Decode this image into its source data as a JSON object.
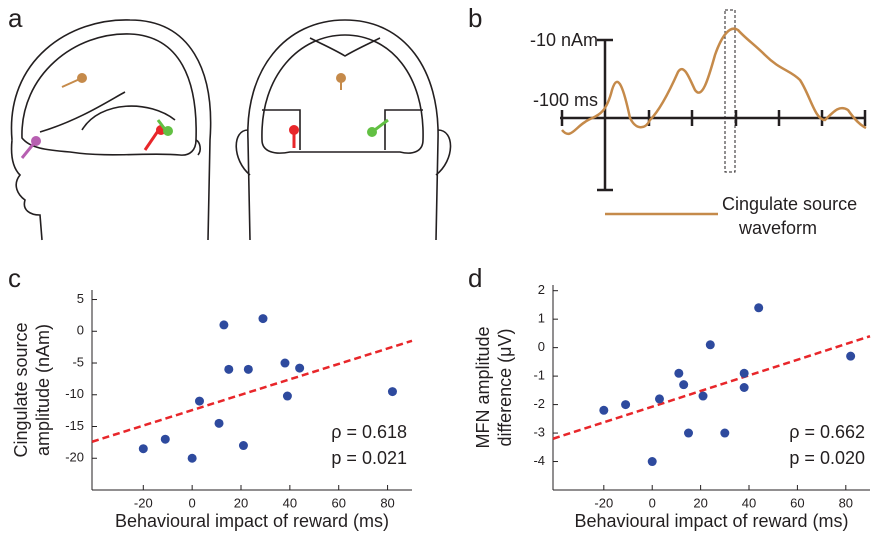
{
  "figure": {
    "panel_labels": [
      "a",
      "b",
      "c",
      "d"
    ],
    "waveform": {
      "amplitude_label": "-10 nAm",
      "time_label": "-100 ms",
      "legend": [
        "Cingulate source",
        "waveform"
      ]
    }
  },
  "chart_data": [
    {
      "type": "scatter",
      "y_label": [
        "Cingulate source",
        "amplitude (nAm)"
      ],
      "x_label": "Behavioural impact of reward (ms)",
      "x": [
        -20,
        -11,
        0,
        3,
        11,
        13,
        15,
        21,
        23,
        29,
        38,
        39,
        44,
        82
      ],
      "values": [
        -18.5,
        -17,
        -20,
        -11,
        -14.5,
        1,
        -6,
        -18,
        -6,
        2,
        -5,
        -10.2,
        -5.8,
        -9.5
      ],
      "color": "#2e4a9e",
      "xlim": [
        -41,
        90
      ],
      "xticks": [
        -20,
        0,
        20,
        40,
        60,
        80
      ],
      "ylim": [
        -25,
        6.5
      ],
      "yticks": [
        5,
        0,
        -5,
        -10,
        -15,
        -20
      ],
      "trendline": {
        "x": [
          -41,
          90
        ],
        "y": [
          -17.4,
          -1.5
        ],
        "color": "#e8262a"
      },
      "annotations": [
        "ρ = 0.618",
        "p = 0.021"
      ]
    },
    {
      "type": "scatter",
      "y_label": [
        "MFN amplitude",
        "difference (μV)"
      ],
      "x_label": "Behavioural impact of reward (ms)",
      "x": [
        -20,
        -11,
        0,
        3,
        11,
        13,
        15,
        21,
        24,
        30,
        38,
        38,
        44,
        82
      ],
      "values": [
        -2.2,
        -2,
        -4,
        -1.8,
        -0.9,
        -1.3,
        -3,
        -1.7,
        0.1,
        -3,
        -0.9,
        -1.4,
        1.4,
        -0.3
      ],
      "color": "#2e4a9e",
      "xlim": [
        -41,
        90
      ],
      "xticks": [
        -20,
        0,
        20,
        40,
        60,
        80
      ],
      "ylim": [
        -5,
        2.2
      ],
      "yticks": [
        2,
        1,
        0,
        -1,
        -2,
        -3,
        -4
      ],
      "trendline": {
        "x": [
          -41,
          90
        ],
        "y": [
          -3.2,
          0.4
        ],
        "color": "#e8262a"
      },
      "annotations": [
        "ρ = 0.662",
        "p = 0.020"
      ]
    }
  ]
}
